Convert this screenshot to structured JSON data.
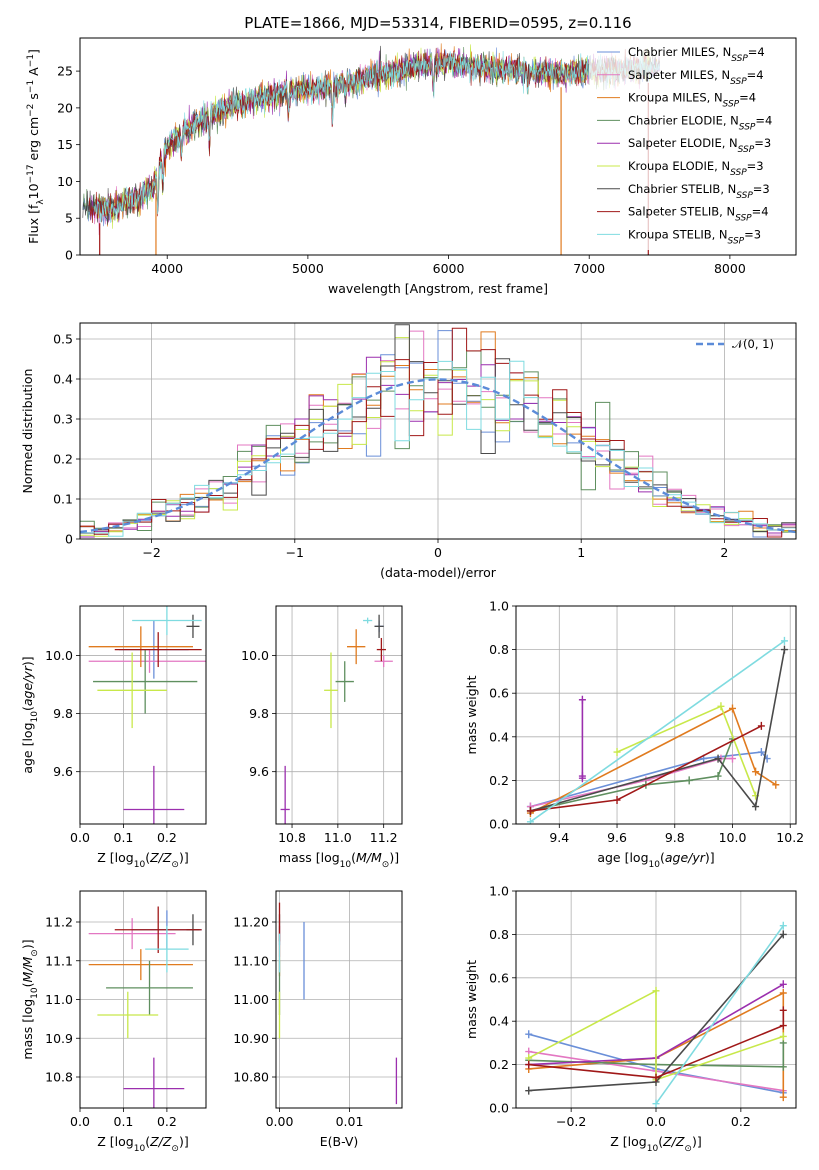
{
  "figure": {
    "title": "PLATE=1866, MJD=53314, FIBERID=0595, z=0.116"
  },
  "colors": {
    "Chabrier MILES": "#6a8fd8",
    "Salpeter MILES": "#e377c2",
    "Kroupa MILES": "#e07b1f",
    "Chabrier ELODIE": "#5f8f5f",
    "Salpeter ELODIE": "#9b2fae",
    "Kroupa ELODIE": "#c8e84a",
    "Chabrier STELIB": "#4a4a4a",
    "Salpeter STELIB": "#a01818",
    "Kroupa STELIB": "#7fdbe0",
    "normal_curve": "#5b8bd8"
  },
  "chart_data": [
    {
      "id": "spectrum",
      "type": "line",
      "title": "PLATE=1866, MJD=53314, FIBERID=0595, z=0.116",
      "xlabel": "wavelength [Angstrom, rest frame]",
      "ylabel": "Flux [f_λ10^-17 erg cm^-2 s^-1 A^-1]",
      "xlim": [
        3380,
        8470
      ],
      "ylim": [
        0,
        29.5
      ],
      "xticks": [
        4000,
        5000,
        6000,
        7000,
        8000
      ],
      "yticks": [
        0,
        5,
        10,
        15,
        20,
        25
      ],
      "grid": false,
      "legend_position": "right",
      "legend": [
        "Chabrier MILES, N_SSP=4",
        "Salpeter MILES, N_SSP=4",
        "Kroupa MILES, N_SSP=4",
        "Chabrier ELODIE, N_SSP=4",
        "Salpeter ELODIE, N_SSP=3",
        "Kroupa ELODIE, N_SSP=3",
        "Chabrier STELIB, N_SSP=3",
        "Salpeter STELIB, N_SSP=4",
        "Kroupa STELIB, N_SSP=3"
      ],
      "continuum_x": [
        3400,
        3600,
        3800,
        3900,
        3950,
        4000,
        4100,
        4300,
        4500,
        4800,
        5000,
        5200,
        5500,
        5800,
        6000,
        6200,
        6500,
        6800,
        7000,
        7300,
        7500
      ],
      "continuum_y": [
        6.5,
        6.2,
        7.8,
        9.0,
        12.5,
        14.5,
        16.5,
        19.0,
        20.5,
        22.0,
        22.5,
        23.0,
        24.5,
        25.8,
        26.2,
        25.5,
        25.0,
        24.8,
        25.0,
        25.3,
        25.5
      ],
      "absorption_lines": [
        {
          "x": 3934,
          "depth": 5
        },
        {
          "x": 3968,
          "depth": 4
        },
        {
          "x": 4102,
          "depth": 3
        },
        {
          "x": 4300,
          "depth": 4
        },
        {
          "x": 4861,
          "depth": 3
        },
        {
          "x": 5175,
          "depth": 5
        },
        {
          "x": 5270,
          "depth": 2
        },
        {
          "x": 5893,
          "depth": 4
        },
        {
          "x": 6563,
          "depth": 2
        }
      ],
      "gaps": [
        3520,
        3920,
        6800,
        7420
      ]
    },
    {
      "id": "residuals",
      "type": "area",
      "xlabel": "(data-model)/error",
      "ylabel": "Normed distribution",
      "xlim": [
        -2.5,
        2.5
      ],
      "ylim": [
        0,
        0.54
      ],
      "xticks": [
        -2,
        -1,
        0,
        1,
        2
      ],
      "yticks": [
        0.0,
        0.1,
        0.2,
        0.3,
        0.4,
        0.5
      ],
      "grid": true,
      "legend_position": "top-right",
      "legend": [
        "𝒩(0, 1)"
      ],
      "bin_width": 0.1
    },
    {
      "id": "age_vs_Z",
      "type": "scatter",
      "xlabel": "Z [log10(Z/Z⊙)]",
      "ylabel": "age [log10(age/yr)]",
      "xlim": [
        0.0,
        0.29
      ],
      "ylim": [
        9.42,
        10.17
      ],
      "xticks": [
        0.0,
        0.1,
        0.2
      ],
      "yticks": [
        9.6,
        9.8,
        10.0
      ],
      "grid": true,
      "points": [
        {
          "m": "Chabrier MILES",
          "x": 0.17,
          "y": 10.02,
          "xerr": 0.08,
          "yerr": 0.1
        },
        {
          "m": "Salpeter MILES",
          "x": 0.16,
          "y": 9.98,
          "xerr": 0.14,
          "yerr": 0.04
        },
        {
          "m": "Kroupa MILES",
          "x": 0.14,
          "y": 10.03,
          "xerr": 0.12,
          "yerr": 0.07
        },
        {
          "m": "Chabrier ELODIE",
          "x": 0.15,
          "y": 9.91,
          "xerr": 0.12,
          "yerr": 0.11
        },
        {
          "m": "Salpeter ELODIE",
          "x": 0.17,
          "y": 9.47,
          "xerr": 0.07,
          "yerr": 0.15
        },
        {
          "m": "Kroupa ELODIE",
          "x": 0.12,
          "y": 9.88,
          "xerr": 0.08,
          "yerr": 0.13
        },
        {
          "m": "Chabrier STELIB",
          "x": 0.26,
          "y": 10.1,
          "xerr": 0.015,
          "yerr": 0.04
        },
        {
          "m": "Salpeter STELIB",
          "x": 0.18,
          "y": 10.02,
          "xerr": 0.1,
          "yerr": 0.06
        },
        {
          "m": "Kroupa STELIB",
          "x": 0.2,
          "y": 10.12,
          "xerr": 0.08,
          "yerr": 0.05
        }
      ]
    },
    {
      "id": "age_vs_mass",
      "type": "scatter",
      "xlabel": "mass [log10(M/M⊙)]",
      "ylabel": "",
      "xlim": [
        10.73,
        11.28
      ],
      "ylim": [
        9.42,
        10.17
      ],
      "xticks": [
        10.8,
        11.0,
        11.2
      ],
      "yticks": [
        9.6,
        9.8,
        10.0
      ],
      "grid": true,
      "points": [
        {
          "m": "Chabrier MILES",
          "x": 11.18,
          "y": 10.1,
          "xerr": 0.02,
          "yerr": 0.02
        },
        {
          "m": "Salpeter MILES",
          "x": 11.2,
          "y": 9.98,
          "xerr": 0.04,
          "yerr": 0.02
        },
        {
          "m": "Kroupa MILES",
          "x": 11.08,
          "y": 10.03,
          "xerr": 0.04,
          "yerr": 0.06
        },
        {
          "m": "Chabrier ELODIE",
          "x": 11.03,
          "y": 9.91,
          "xerr": 0.04,
          "yerr": 0.07
        },
        {
          "m": "Salpeter ELODIE",
          "x": 10.77,
          "y": 9.47,
          "xerr": 0.02,
          "yerr": 0.15
        },
        {
          "m": "Kroupa ELODIE",
          "x": 10.97,
          "y": 9.88,
          "xerr": 0.03,
          "yerr": 0.13
        },
        {
          "m": "Chabrier STELIB",
          "x": 11.18,
          "y": 10.1,
          "xerr": 0.02,
          "yerr": 0.04
        },
        {
          "m": "Salpeter STELIB",
          "x": 11.19,
          "y": 10.02,
          "xerr": 0.02,
          "yerr": 0.04
        },
        {
          "m": "Kroupa STELIB",
          "x": 11.13,
          "y": 10.12,
          "xerr": 0.02,
          "yerr": 0.01
        }
      ]
    },
    {
      "id": "weight_vs_age",
      "type": "line",
      "xlabel": "age [log10(age/yr)]",
      "ylabel": "mass weight",
      "xlim": [
        9.25,
        10.22
      ],
      "ylim": [
        0,
        1
      ],
      "xticks": [
        9.4,
        9.6,
        9.8,
        10.0,
        10.2
      ],
      "yticks": [
        0.0,
        0.2,
        0.4,
        0.6,
        0.8,
        1.0
      ],
      "grid": true,
      "series": [
        {
          "m": "Chabrier MILES",
          "x": [
            9.3,
            9.9,
            10.1,
            10.12
          ],
          "y": [
            0.08,
            0.3,
            0.33,
            0.3
          ]
        },
        {
          "m": "Salpeter MILES",
          "x": [
            9.3,
            9.7,
            9.96,
            10.0
          ],
          "y": [
            0.08,
            0.2,
            0.3,
            0.3
          ]
        },
        {
          "m": "Kroupa MILES",
          "x": [
            9.3,
            10.0,
            10.08,
            10.15
          ],
          "y": [
            0.05,
            0.53,
            0.24,
            0.18
          ]
        },
        {
          "m": "Chabrier ELODIE",
          "x": [
            9.3,
            9.7,
            9.85,
            9.95,
            10.0
          ],
          "y": [
            0.06,
            0.18,
            0.2,
            0.22,
            0.39
          ]
        },
        {
          "m": "Salpeter ELODIE",
          "x": [
            9.48,
            9.48,
            9.48
          ],
          "y": [
            0.57,
            0.22,
            0.21
          ]
        },
        {
          "m": "Kroupa ELODIE",
          "x": [
            9.6,
            9.96,
            10.08
          ],
          "y": [
            0.33,
            0.54,
            0.13
          ]
        },
        {
          "m": "Chabrier STELIB",
          "x": [
            9.3,
            9.95,
            10.08,
            10.18
          ],
          "y": [
            0.06,
            0.3,
            0.08,
            0.8
          ]
        },
        {
          "m": "Salpeter STELIB",
          "x": [
            9.3,
            9.6,
            10.1
          ],
          "y": [
            0.06,
            0.11,
            0.45
          ]
        },
        {
          "m": "Kroupa STELIB",
          "x": [
            9.3,
            10.18
          ],
          "y": [
            0.01,
            0.84
          ]
        }
      ]
    },
    {
      "id": "mass_vs_Z",
      "type": "scatter",
      "xlabel": "Z [log10(Z/Z⊙)]",
      "ylabel": "mass [log10(M/M⊙)]",
      "xlim": [
        0.0,
        0.29
      ],
      "ylim": [
        10.72,
        11.28
      ],
      "xticks": [
        0.0,
        0.1,
        0.2
      ],
      "yticks": [
        10.8,
        10.9,
        11.0,
        11.1,
        11.2
      ],
      "grid": true,
      "points": [
        {
          "m": "Chabrier MILES",
          "x": 0.2,
          "y": 11.18,
          "xerr": 0.08,
          "yerr": 0.05
        },
        {
          "m": "Salpeter MILES",
          "x": 0.12,
          "y": 11.17,
          "xerr": 0.1,
          "yerr": 0.04
        },
        {
          "m": "Kroupa MILES",
          "x": 0.14,
          "y": 11.09,
          "xerr": 0.12,
          "yerr": 0.04
        },
        {
          "m": "Chabrier ELODIE",
          "x": 0.16,
          "y": 11.03,
          "xerr": 0.1,
          "yerr": 0.07
        },
        {
          "m": "Salpeter ELODIE",
          "x": 0.17,
          "y": 10.77,
          "xerr": 0.07,
          "yerr": 0.08
        },
        {
          "m": "Kroupa ELODIE",
          "x": 0.11,
          "y": 10.96,
          "xerr": 0.07,
          "yerr": 0.06
        },
        {
          "m": "Chabrier STELIB",
          "x": 0.26,
          "y": 11.18,
          "xerr": 0.015,
          "yerr": 0.04
        },
        {
          "m": "Salpeter STELIB",
          "x": 0.18,
          "y": 11.18,
          "xerr": 0.1,
          "yerr": 0.06
        },
        {
          "m": "Kroupa STELIB",
          "x": 0.2,
          "y": 11.13,
          "xerr": 0.05,
          "yerr": 0.06
        }
      ]
    },
    {
      "id": "mass_vs_ebv",
      "type": "scatter",
      "xlabel": "E(B-V)",
      "ylabel": "",
      "xlim": [
        -0.0005,
        0.0175
      ],
      "ylim": [
        10.72,
        11.28
      ],
      "xticks": [
        0.0,
        0.01
      ],
      "yticks": [
        10.8,
        10.9,
        11.0,
        11.1,
        11.2
      ],
      "grid": true,
      "points": [
        {
          "m": "Chabrier MILES",
          "x": 0.0035,
          "y": 11.1,
          "xerr": 0,
          "yerr": 0.1
        },
        {
          "m": "Salpeter MILES",
          "x": 0.0,
          "y": 11.15,
          "xerr": 0,
          "yerr": 0.04
        },
        {
          "m": "Kroupa MILES",
          "x": 0.0,
          "y": 11.1,
          "xerr": 0,
          "yerr": 0.04
        },
        {
          "m": "Chabrier ELODIE",
          "x": 0.0,
          "y": 11.03,
          "xerr": 0,
          "yerr": 0.07
        },
        {
          "m": "Salpeter ELODIE",
          "x": 0.0167,
          "y": 10.79,
          "xerr": 0,
          "yerr": 0.06
        },
        {
          "m": "Kroupa ELODIE",
          "x": 0.0,
          "y": 10.96,
          "xerr": 0,
          "yerr": 0.06
        },
        {
          "m": "Chabrier STELIB",
          "x": 0.0,
          "y": 11.18,
          "xerr": 0,
          "yerr": 0.04
        },
        {
          "m": "Salpeter STELIB",
          "x": 0.0,
          "y": 11.2,
          "xerr": 0,
          "yerr": 0.05
        },
        {
          "m": "Kroupa STELIB",
          "x": 0.0,
          "y": 11.12,
          "xerr": 0,
          "yerr": 0.05
        }
      ]
    },
    {
      "id": "weight_vs_Z",
      "type": "line",
      "xlabel": "Z [log10(Z/Z⊙)]",
      "ylabel": "mass weight",
      "xlim": [
        -0.33,
        0.33
      ],
      "ylim": [
        0,
        1
      ],
      "xticks": [
        -0.2,
        0.0,
        0.2
      ],
      "yticks": [
        0.0,
        0.2,
        0.4,
        0.6,
        0.8,
        1.0
      ],
      "grid": true,
      "series": [
        {
          "m": "Chabrier MILES",
          "x": [
            -0.3,
            0.0,
            0.3
          ],
          "y": [
            0.34,
            0.18,
            0.07
          ]
        },
        {
          "m": "Salpeter MILES",
          "x": [
            -0.3,
            0.0,
            0.3
          ],
          "y": [
            0.26,
            0.17,
            0.08
          ]
        },
        {
          "m": "Kroupa MILES",
          "x": [
            -0.3,
            0.0,
            0.3,
            0.3
          ],
          "y": [
            0.18,
            0.23,
            0.53,
            0.05
          ]
        },
        {
          "m": "Chabrier ELODIE",
          "x": [
            -0.3,
            0.0,
            0.3,
            0.3
          ],
          "y": [
            0.22,
            0.2,
            0.19,
            0.3
          ]
        },
        {
          "m": "Salpeter ELODIE",
          "x": [
            -0.3,
            0.0,
            0.3
          ],
          "y": [
            0.2,
            0.23,
            0.57
          ]
        },
        {
          "m": "Kroupa ELODIE",
          "x": [
            -0.3,
            0.0,
            0.0,
            0.3
          ],
          "y": [
            0.23,
            0.54,
            0.13,
            0.33
          ]
        },
        {
          "m": "Chabrier STELIB",
          "x": [
            -0.3,
            0.0,
            0.3
          ],
          "y": [
            0.08,
            0.12,
            0.8
          ]
        },
        {
          "m": "Salpeter STELIB",
          "x": [
            -0.3,
            0.0,
            0.3,
            0.3
          ],
          "y": [
            0.2,
            0.14,
            0.38,
            0.45
          ]
        },
        {
          "m": "Kroupa STELIB",
          "x": [
            0.0,
            0.3
          ],
          "y": [
            0.02,
            0.84
          ]
        }
      ]
    }
  ]
}
